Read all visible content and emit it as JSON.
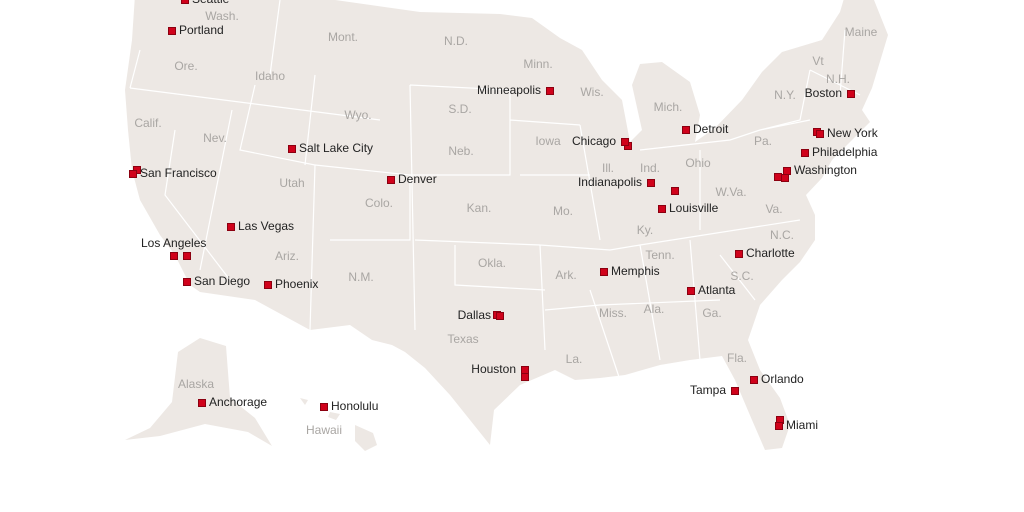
{
  "colors": {
    "land": "#ede8e4",
    "border": "#ffffff",
    "marker": "#d0021b",
    "state_label": "#a9a6a3",
    "city_label": "#222222"
  },
  "states": [
    "Wash.",
    "Ore.",
    "Calif.",
    "Idaho",
    "Nev.",
    "Mont.",
    "Wyo.",
    "Utah",
    "Ariz.",
    "Colo.",
    "N.M.",
    "N.D.",
    "S.D.",
    "Neb.",
    "Kan.",
    "Okla.",
    "Texas",
    "Minn.",
    "Iowa",
    "Mo.",
    "Ark.",
    "La.",
    "Wis.",
    "Ill.",
    "Mich.",
    "Ind.",
    "Ohio",
    "Ky.",
    "Tenn.",
    "Miss.",
    "Ala.",
    "Ga.",
    "Fla.",
    "S.C.",
    "N.C.",
    "Va.",
    "W.Va.",
    "Pa.",
    "N.Y.",
    "Vt",
    "N.H.",
    "Maine",
    "Alaska",
    "Hawaii"
  ],
  "cities": [
    "Seattle",
    "Portland",
    "San Francisco",
    "Salt Lake City",
    "Denver",
    "Las Vegas",
    "Los Angeles",
    "San Diego",
    "Phoenix",
    "Minneapolis",
    "Dallas",
    "Houston",
    "Chicago",
    "Detroit",
    "Indianapolis",
    "Louisville",
    "Memphis",
    "Atlanta",
    "Charlotte",
    "Boston",
    "New York",
    "Philadelphia",
    "Washington",
    "Orlando",
    "Tampa",
    "Miami",
    "Anchorage",
    "Honolulu"
  ]
}
